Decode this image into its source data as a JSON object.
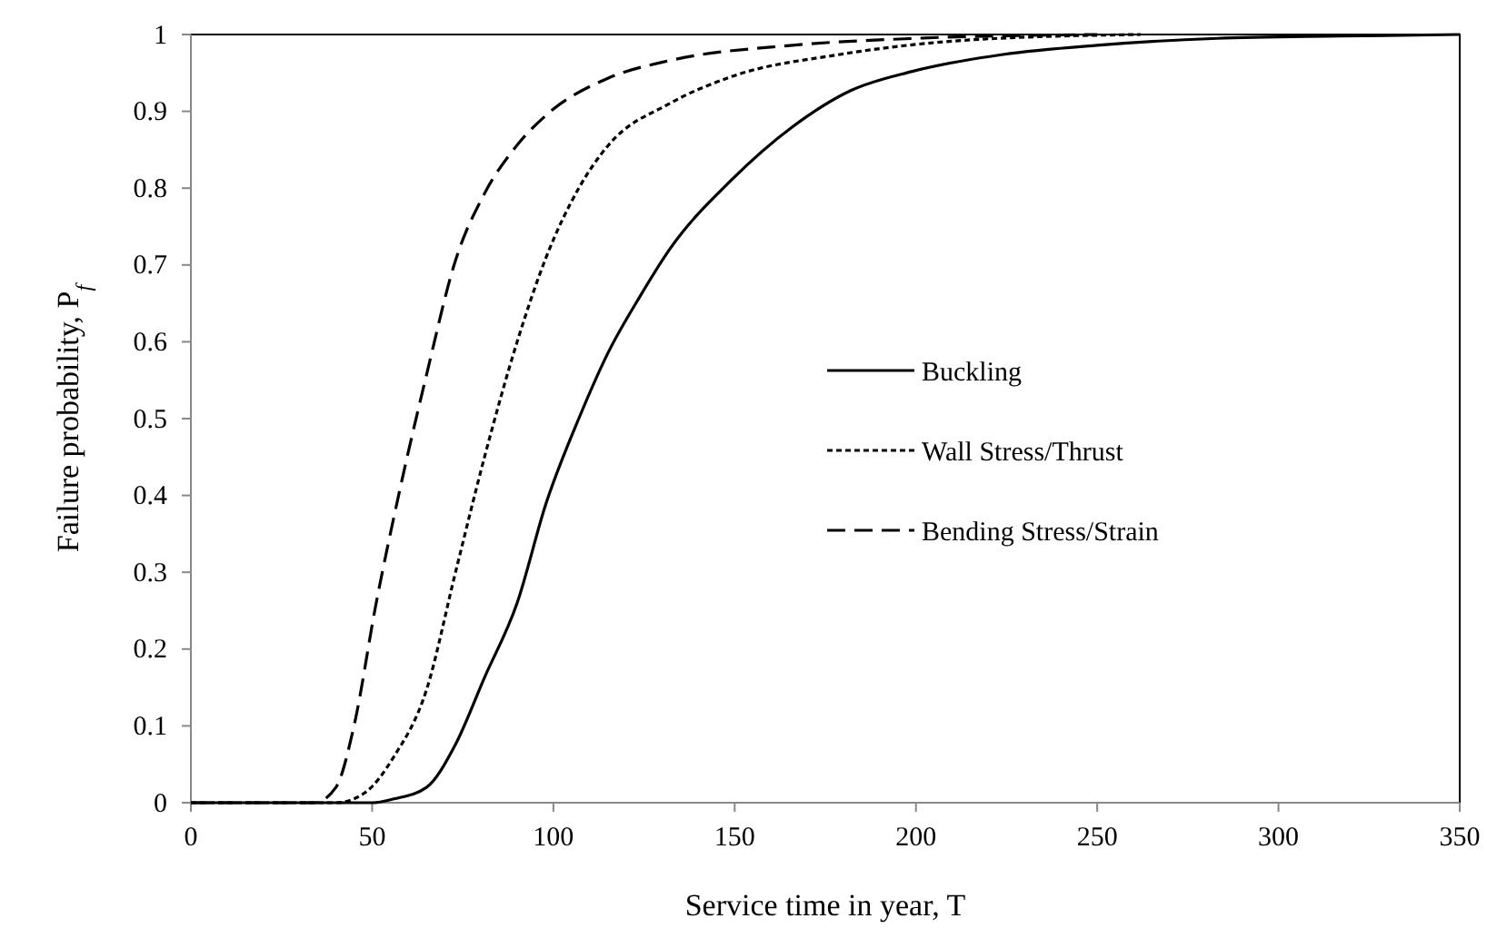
{
  "chart_data": {
    "type": "line",
    "xlabel": "Service time in year, T",
    "ylabel": "Failure probability, P$_{f}$",
    "xlim": [
      0,
      350
    ],
    "ylim": [
      0,
      1
    ],
    "xticks": [
      0,
      50,
      100,
      150,
      200,
      250,
      300,
      350
    ],
    "yticks": [
      0,
      0.1,
      0.2,
      0.3,
      0.4,
      0.5,
      0.6,
      0.7,
      0.8,
      0.9,
      1
    ],
    "grid": false,
    "legend": "right",
    "marker": "none",
    "series": [
      {
        "name": "Buckling",
        "color": "#000000",
        "line_style": "solid",
        "x": [
          0,
          50,
          56,
          65,
          73,
          81,
          90,
          98,
          107,
          115,
          124,
          132,
          149,
          166,
          182,
          199,
          224,
          250,
          283,
          317,
          350
        ],
        "values": [
          0,
          0,
          0.005,
          0.02,
          0.076,
          0.163,
          0.26,
          0.39,
          0.5,
          0.585,
          0.66,
          0.72,
          0.81,
          0.88,
          0.927,
          0.952,
          0.974,
          0.986,
          0.995,
          0.998,
          1
        ]
      },
      {
        "name": "Wall Stress/Thrust",
        "color": "#000000",
        "line_style": "dotted",
        "x": [
          0,
          40,
          48,
          56,
          65,
          73,
          81,
          90,
          98,
          107,
          115,
          132,
          149,
          179,
          215,
          262
        ],
        "values": [
          0,
          0,
          0.013,
          0.06,
          0.147,
          0.3,
          0.45,
          0.6,
          0.71,
          0.8,
          0.855,
          0.91,
          0.945,
          0.974,
          0.993,
          1
        ]
      },
      {
        "name": "Bending Stress/Strain",
        "color": "#000000",
        "line_style": "dashed",
        "x": [
          0,
          34,
          40,
          45,
          51,
          58,
          65,
          73,
          81,
          90,
          98,
          115,
          132,
          166,
          200,
          250
        ],
        "values": [
          0,
          0,
          0.02,
          0.1,
          0.257,
          0.415,
          0.557,
          0.706,
          0.793,
          0.856,
          0.895,
          0.943,
          0.966,
          0.986,
          0.995,
          1
        ]
      }
    ]
  }
}
